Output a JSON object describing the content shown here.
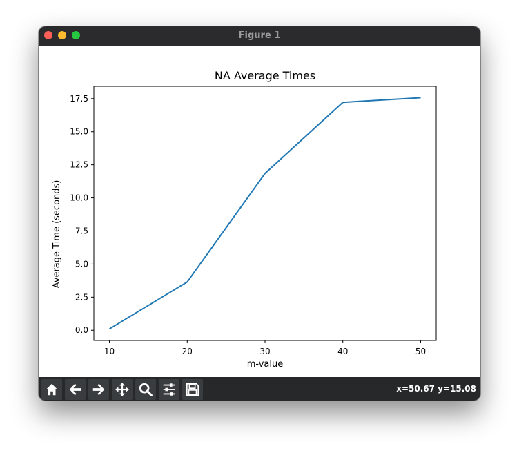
{
  "window": {
    "title": "Figure 1"
  },
  "toolbar": {
    "buttons": [
      {
        "name": "home-button",
        "icon": "home-icon"
      },
      {
        "name": "back-button",
        "icon": "arrow-left-icon"
      },
      {
        "name": "forward-button",
        "icon": "arrow-right-icon"
      },
      {
        "name": "pan-button",
        "icon": "move-icon"
      },
      {
        "name": "zoom-button",
        "icon": "magnifier-icon"
      },
      {
        "name": "configure-subplots-button",
        "icon": "sliders-icon"
      },
      {
        "name": "save-button",
        "icon": "floppy-disk-icon"
      }
    ],
    "coords": "x=50.67 y=15.08"
  },
  "chart_data": {
    "type": "line",
    "title": "NA Average Times",
    "xlabel": "m-value",
    "ylabel": "Average Time (seconds)",
    "x": [
      10,
      20,
      30,
      40,
      50
    ],
    "series": [
      {
        "values": [
          0.1,
          3.65,
          11.85,
          17.22,
          17.57
        ],
        "color": "#1f77b4"
      }
    ],
    "xticks": [
      10,
      20,
      30,
      40,
      50
    ],
    "xtick_labels": [
      "10",
      "20",
      "30",
      "40",
      "50"
    ],
    "yticks": [
      0.0,
      2.5,
      5.0,
      7.5,
      10.0,
      12.5,
      15.0,
      17.5
    ],
    "ytick_labels": [
      "0.0",
      "2.5",
      "5.0",
      "7.5",
      "10.0",
      "12.5",
      "15.0",
      "17.5"
    ],
    "xlim": [
      8,
      52
    ],
    "ylim": [
      -0.77,
      18.43
    ],
    "grid": false,
    "legend": false
  }
}
